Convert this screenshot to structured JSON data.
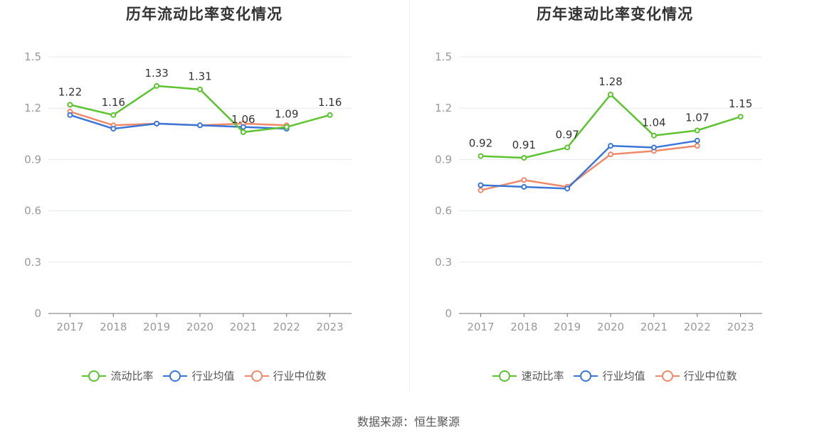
{
  "source": "数据来源：恒生聚源",
  "chart_data": [
    {
      "type": "line",
      "title": "历年流动比率变化情况",
      "categories": [
        "2017",
        "2018",
        "2019",
        "2020",
        "2021",
        "2022",
        "2023"
      ],
      "ylim": [
        0,
        1.5
      ],
      "yticks": [
        "0",
        "0.3",
        "0.6",
        "0.9",
        "1.2",
        "1.5"
      ],
      "grid": true,
      "legend_position": "bottom",
      "series": [
        {
          "name": "流动比率",
          "color": "#5cc42f",
          "values": [
            1.22,
            1.16,
            1.33,
            1.31,
            1.06,
            1.09,
            1.16
          ],
          "labels": [
            "1.22",
            "1.16",
            "1.33",
            "1.31",
            "1.06",
            "1.09",
            "1.16"
          ]
        },
        {
          "name": "行业均值",
          "color": "#3a76d8",
          "values": [
            1.16,
            1.08,
            1.11,
            1.1,
            1.09,
            1.08,
            null
          ]
        },
        {
          "name": "行业中位数",
          "color": "#f0896a",
          "values": [
            1.18,
            1.1,
            1.11,
            1.1,
            1.11,
            1.1,
            null
          ]
        }
      ]
    },
    {
      "type": "line",
      "title": "历年速动比率变化情况",
      "categories": [
        "2017",
        "2018",
        "2019",
        "2020",
        "2021",
        "2022",
        "2023"
      ],
      "ylim": [
        0,
        1.5
      ],
      "yticks": [
        "0",
        "0.3",
        "0.6",
        "0.9",
        "1.2",
        "1.5"
      ],
      "grid": true,
      "legend_position": "bottom",
      "series": [
        {
          "name": "速动比率",
          "color": "#5cc42f",
          "values": [
            0.92,
            0.91,
            0.97,
            1.28,
            1.04,
            1.07,
            1.15
          ],
          "labels": [
            "0.92",
            "0.91",
            "0.97",
            "1.28",
            "1.04",
            "1.07",
            "1.15"
          ]
        },
        {
          "name": "行业均值",
          "color": "#3a76d8",
          "values": [
            0.75,
            0.74,
            0.73,
            0.98,
            0.97,
            1.01,
            null
          ]
        },
        {
          "name": "行业中位数",
          "color": "#f0896a",
          "values": [
            0.72,
            0.78,
            0.74,
            0.93,
            0.95,
            0.98,
            null
          ]
        }
      ]
    }
  ]
}
